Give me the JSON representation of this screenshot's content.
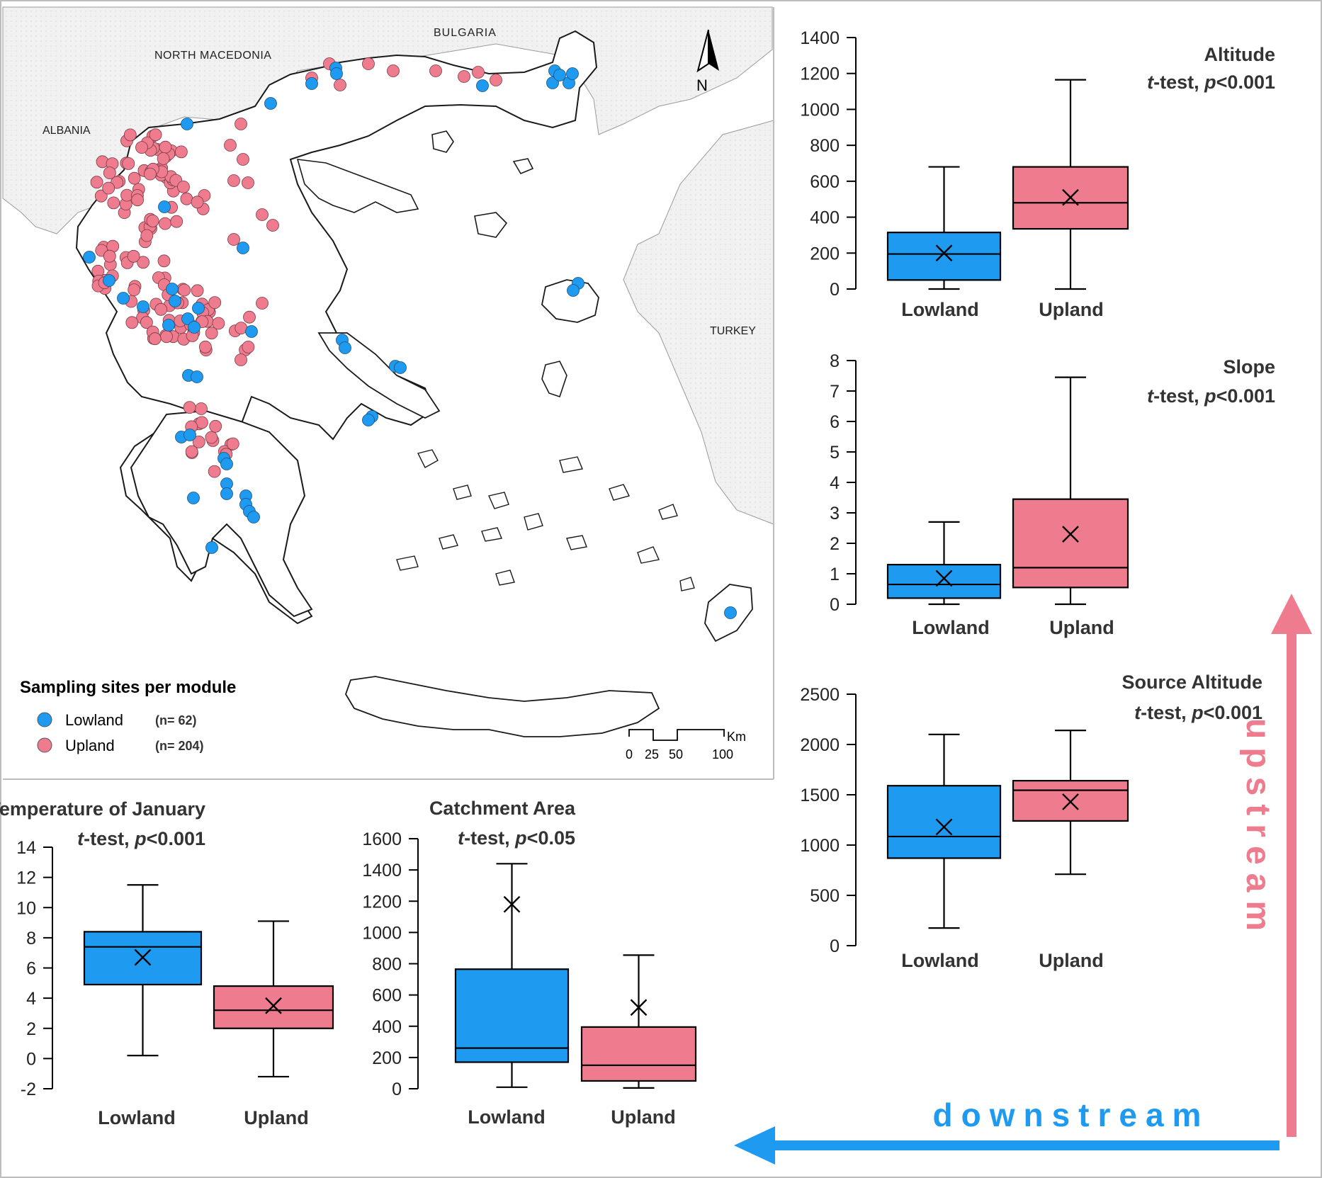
{
  "colors": {
    "lowland": "#1E9BF0",
    "upland": "#EE7C8E",
    "box_stroke": "#000000"
  },
  "map": {
    "countries": {
      "bulgaria": "BULGARIA",
      "north_macedonia": "NORTH MACEDONIA",
      "albania": "ALBANIA",
      "turkey": "TURKEY"
    },
    "north_arrow": "N",
    "legend": {
      "title": "Sampling sites per module",
      "items": [
        {
          "label": "Lowland",
          "n": "(n= 62)",
          "color": "#1E9BF0"
        },
        {
          "label": "Upland",
          "n": "(n= 204)",
          "color": "#EE7C8E"
        }
      ]
    },
    "scale": {
      "unit": "Km",
      "ticks": [
        "0",
        "25",
        "50",
        "100"
      ]
    }
  },
  "chart_data": [
    {
      "id": "altitude",
      "type": "box",
      "title": "Altitude",
      "test_label": "t-test, ",
      "test_p": "p",
      "test_val": "<0.001",
      "ylim": [
        0,
        1400
      ],
      "ticks": [
        "0",
        "200",
        "400",
        "600",
        "800",
        "1000",
        "1200",
        "1400"
      ],
      "categories": [
        "Lowland",
        "Upland"
      ],
      "series": [
        {
          "name": "Lowland",
          "min": 0,
          "q1": 50,
          "median": 195,
          "q3": 315,
          "max": 680,
          "mean": 200
        },
        {
          "name": "Upland",
          "min": 0,
          "q1": 335,
          "median": 480,
          "q3": 680,
          "max": 1165,
          "mean": 510
        }
      ]
    },
    {
      "id": "slope",
      "type": "box",
      "title": "Slope",
      "test_label": "t-test, ",
      "test_p": "p",
      "test_val": "<0.001",
      "ylim": [
        0,
        8
      ],
      "ticks": [
        "0",
        "1",
        "2",
        "3",
        "4",
        "5",
        "6",
        "7",
        "8"
      ],
      "categories": [
        "Lowland",
        "Upland"
      ],
      "series": [
        {
          "name": "Lowland",
          "min": 0,
          "q1": 0.2,
          "median": 0.65,
          "q3": 1.3,
          "max": 2.7,
          "mean": 0.85
        },
        {
          "name": "Upland",
          "min": 0,
          "q1": 0.55,
          "median": 1.2,
          "q3": 3.45,
          "max": 7.45,
          "mean": 2.3
        }
      ]
    },
    {
      "id": "source_altitude",
      "type": "box",
      "title": "Source Altitude",
      "test_label": "t-test, ",
      "test_p": "p",
      "test_val": "<0.001",
      "ylim": [
        0,
        2500
      ],
      "ticks": [
        "0",
        "500",
        "1000",
        "1500",
        "2000",
        "2500"
      ],
      "categories": [
        "Lowland",
        "Upland"
      ],
      "series": [
        {
          "name": "Lowland",
          "min": 175,
          "q1": 870,
          "median": 1085,
          "q3": 1590,
          "max": 2100,
          "mean": 1180
        },
        {
          "name": "Upland",
          "min": 710,
          "q1": 1240,
          "median": 1545,
          "q3": 1640,
          "max": 2140,
          "mean": 1430
        }
      ]
    },
    {
      "id": "temperature_january",
      "type": "box",
      "title": "Temperature of January",
      "test_label": "t-test, ",
      "test_p": "p",
      "test_val": "<0.001",
      "ylim": [
        -2,
        14
      ],
      "ticks": [
        "-2",
        "0",
        "2",
        "4",
        "6",
        "8",
        "10",
        "12",
        "14"
      ],
      "categories": [
        "Lowland",
        "Upland"
      ],
      "series": [
        {
          "name": "Lowland",
          "min": 0.2,
          "q1": 4.9,
          "median": 7.4,
          "q3": 8.4,
          "max": 11.5,
          "mean": 6.7
        },
        {
          "name": "Upland",
          "min": -1.2,
          "q1": 2.0,
          "median": 3.2,
          "q3": 4.8,
          "max": 9.1,
          "mean": 3.5
        }
      ]
    },
    {
      "id": "catchment_area",
      "type": "box",
      "title": "Catchment Area",
      "test_label": "t-test, ",
      "test_p": "p",
      "test_val": "<0.05",
      "ylim": [
        0,
        1600
      ],
      "ticks": [
        "0",
        "200",
        "400",
        "600",
        "800",
        "1000",
        "1200",
        "1400",
        "1600"
      ],
      "categories": [
        "Lowland",
        "Upland"
      ],
      "series": [
        {
          "name": "Lowland",
          "min": 10,
          "q1": 170,
          "median": 260,
          "q3": 765,
          "max": 1440,
          "mean": 1180
        },
        {
          "name": "Upland",
          "min": 5,
          "q1": 50,
          "median": 150,
          "q3": 395,
          "max": 855,
          "mean": 520
        }
      ]
    }
  ],
  "arrows": {
    "upstream": "upstream",
    "downstream": "downstream"
  }
}
